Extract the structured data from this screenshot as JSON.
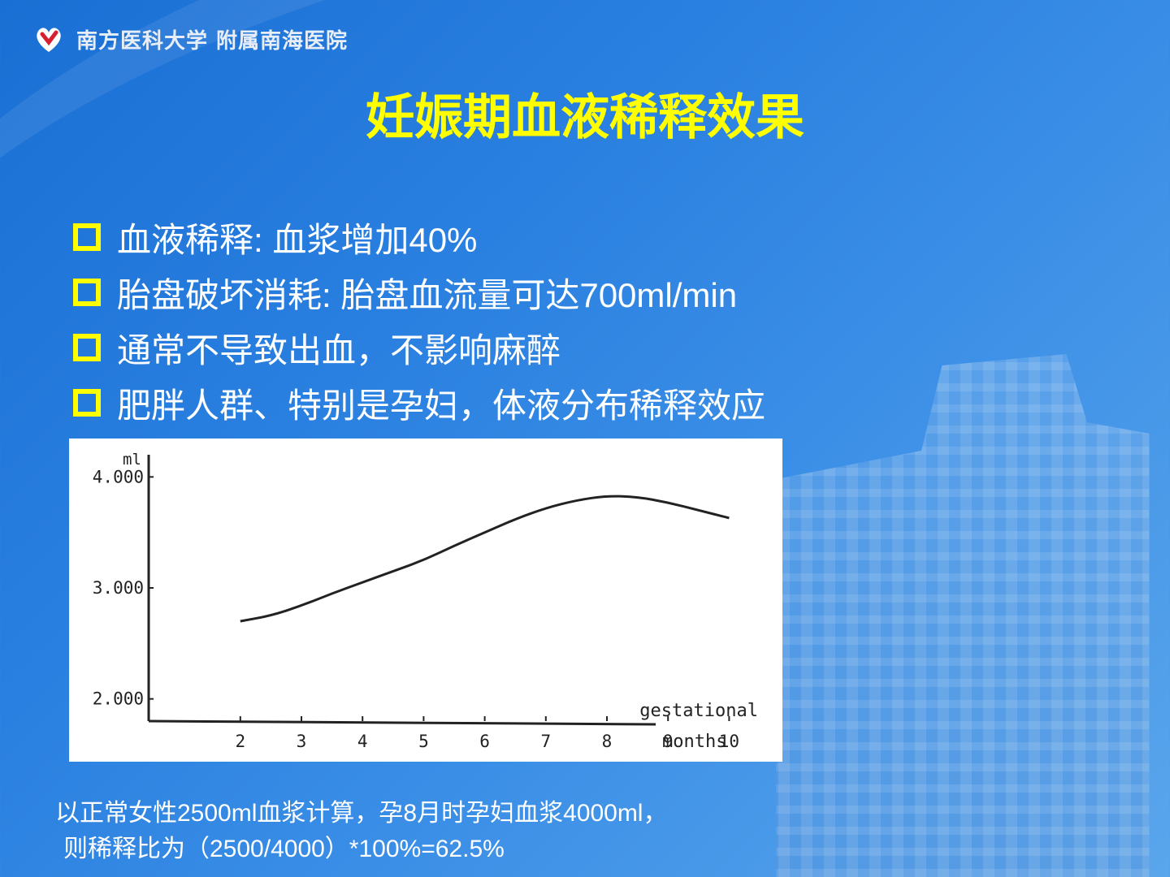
{
  "header": {
    "logo_text": "南方医科大学 附属南海医院",
    "logo_icon": "heart-logo-icon",
    "title": "妊娠期血液稀释效果"
  },
  "bullets": [
    "血液稀释: 血浆增加40%",
    "胎盘破坏消耗: 胎盘血流量可达700ml/min",
    "通常不导致出血，不影响麻醉",
    "肥胖人群、特别是孕妇，体液分布稀释效应"
  ],
  "colors": {
    "title": "#ffff00",
    "bullet_marker": "#ffff00",
    "text": "#ffffff"
  },
  "chart_data": {
    "type": "line",
    "ylabel": "ml",
    "xlabel": "gestational months",
    "xlabel_line1": "gestational",
    "xlabel_line2": "months",
    "x_ticks": [
      2,
      3,
      4,
      5,
      6,
      7,
      8,
      9,
      10
    ],
    "y_ticks": [
      {
        "value": 2000,
        "label": "2.000"
      },
      {
        "value": 3000,
        "label": "3.000"
      },
      {
        "value": 4000,
        "label": "4.000"
      }
    ],
    "xlim": [
      0.5,
      10.5
    ],
    "ylim": [
      1800,
      4200
    ],
    "grid": false,
    "series": [
      {
        "x": [
          2,
          2.5,
          3,
          3.5,
          4,
          4.5,
          5,
          5.5,
          6,
          6.5,
          7,
          7.5,
          8,
          8.5,
          9,
          9.5,
          10
        ],
        "values": [
          2700,
          2750,
          2840,
          2950,
          3050,
          3150,
          3250,
          3380,
          3500,
          3620,
          3720,
          3790,
          3830,
          3820,
          3770,
          3700,
          3630
        ]
      }
    ]
  },
  "footnote": {
    "line1": "以正常女性2500ml血浆计算，孕8月时孕妇血浆4000ml，",
    "line2": "则稀释比为（2500/4000）*100%=62.5%"
  }
}
